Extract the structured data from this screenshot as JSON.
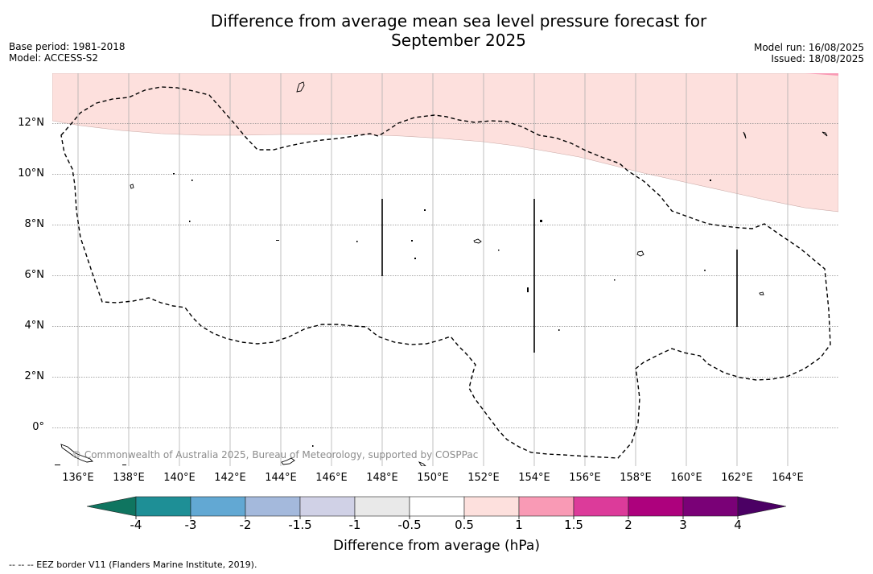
{
  "title_line1": "Difference from average mean sea level pressure forecast for",
  "title_line2": "September 2025",
  "meta_left": [
    "Base period: 1981-2018",
    "Model: ACCESS-S2"
  ],
  "meta_right": [
    "Model run: 16/08/2025",
    "Issued: 18/08/2025"
  ],
  "map": {
    "lat_ticks": [
      "12°N",
      "10°N",
      "8°N",
      "6°N",
      "4°N",
      "2°N",
      "0°"
    ],
    "lon_ticks": [
      "136°E",
      "138°E",
      "140°E",
      "142°E",
      "144°E",
      "146°E",
      "148°E",
      "150°E",
      "152°E",
      "154°E",
      "156°E",
      "158°E",
      "160°E",
      "162°E",
      "164°E"
    ],
    "lon_range": [
      135,
      166
    ],
    "lat_range": [
      -1.5,
      14
    ],
    "grid": true,
    "shaded_region": {
      "range": "0.5 to 1",
      "color": "#fde0dd"
    },
    "copyright": "© Commonwealth of Australia 2025, Bureau of Meteorology, supported by COSPPac"
  },
  "colorbar": {
    "ticks": [
      "-4",
      "-3",
      "-2",
      "-1.5",
      "-1",
      "-0.5",
      "0.5",
      "1",
      "1.5",
      "2",
      "3",
      "4"
    ],
    "colors": [
      "#0f7560",
      "#1e8f96",
      "#62a8d3",
      "#a4b9dc",
      "#d0d1e6",
      "#e9e9e9",
      "#ffffff",
      "#fde0dd",
      "#f99ab5",
      "#dc3b9a",
      "#ad017d",
      "#7a0177",
      "#4b0064"
    ],
    "label": "Difference from average (hPa)"
  },
  "footnote": "--  --  -- EEZ border V11 (Flanders Marine Institute, 2019)."
}
